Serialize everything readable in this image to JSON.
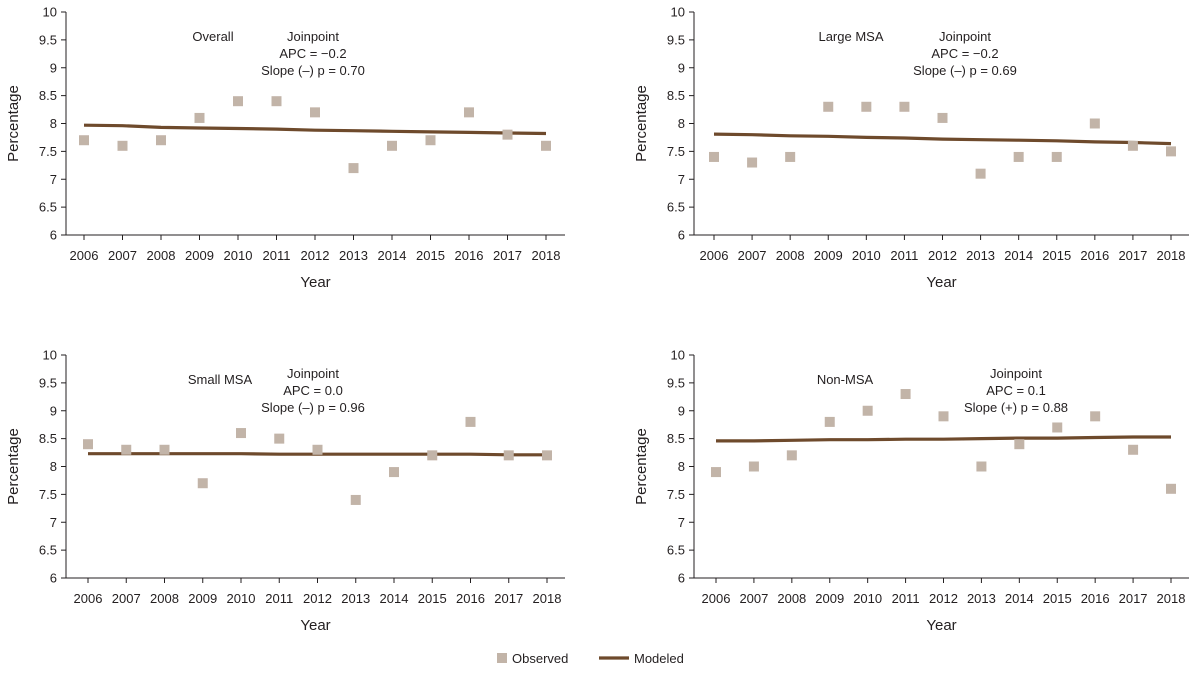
{
  "colors": {
    "observed": "#c2b4a8",
    "modeled": "#6e4a2c",
    "axis": "#231f20"
  },
  "legend": {
    "observed_label": "Observed",
    "modeled_label": "Modeled"
  },
  "chart_data": [
    {
      "type": "scatter",
      "panel": "top-left",
      "title": "Overall",
      "annotation_lines": [
        "Joinpoint",
        "APC = −0.2",
        "Slope (–) p = 0.70"
      ],
      "xlabel": "Year",
      "ylabel": "Percentage",
      "ylim": [
        6,
        10
      ],
      "yticks": [
        "6",
        "6.5",
        "7",
        "7.5",
        "8",
        "8.5",
        "9",
        "9.5",
        "10"
      ],
      "categories": [
        "2006",
        "2007",
        "2008",
        "2009",
        "2010",
        "2011",
        "2012",
        "2013",
        "2014",
        "2015",
        "2016",
        "2017",
        "2018"
      ],
      "series": [
        {
          "name": "Observed",
          "values": [
            7.7,
            7.6,
            7.7,
            8.1,
            8.4,
            8.4,
            8.2,
            7.2,
            7.6,
            7.7,
            8.2,
            7.8,
            7.6
          ]
        },
        {
          "name": "Modeled",
          "values": [
            7.97,
            7.96,
            7.93,
            7.92,
            7.91,
            7.9,
            7.88,
            7.87,
            7.86,
            7.85,
            7.84,
            7.83,
            7.82
          ]
        }
      ]
    },
    {
      "type": "scatter",
      "panel": "top-right",
      "title": "Large MSA",
      "annotation_lines": [
        "Joinpoint",
        "APC = −0.2",
        "Slope (–) p = 0.69"
      ],
      "xlabel": "Year",
      "ylabel": "Percentage",
      "ylim": [
        6,
        10
      ],
      "yticks": [
        "6",
        "6.5",
        "7",
        "7.5",
        "8",
        "8.5",
        "9",
        "9.5",
        "10"
      ],
      "categories": [
        "2006",
        "2007",
        "2008",
        "2009",
        "2010",
        "2011",
        "2012",
        "2013",
        "2014",
        "2015",
        "2016",
        "2017",
        "2018"
      ],
      "series": [
        {
          "name": "Observed",
          "values": [
            7.4,
            7.3,
            7.4,
            8.3,
            8.3,
            8.3,
            8.1,
            7.1,
            7.4,
            7.4,
            8.0,
            7.6,
            7.5
          ]
        },
        {
          "name": "Modeled",
          "values": [
            7.81,
            7.8,
            7.78,
            7.77,
            7.75,
            7.74,
            7.72,
            7.71,
            7.7,
            7.69,
            7.67,
            7.66,
            7.64
          ]
        }
      ]
    },
    {
      "type": "scatter",
      "panel": "bottom-left",
      "title": "Small MSA",
      "annotation_lines": [
        "Joinpoint",
        "APC = 0.0",
        "Slope (–) p = 0.96"
      ],
      "xlabel": "Year",
      "ylabel": "Percentage",
      "ylim": [
        6,
        10
      ],
      "yticks": [
        "6",
        "6.5",
        "7",
        "7.5",
        "8",
        "8.5",
        "9",
        "9.5",
        "10"
      ],
      "categories": [
        "2006",
        "2007",
        "2008",
        "2009",
        "2010",
        "2011",
        "2012",
        "2013",
        "2014",
        "2015",
        "2016",
        "2017",
        "2018"
      ],
      "series": [
        {
          "name": "Observed",
          "values": [
            8.4,
            8.3,
            8.3,
            7.7,
            8.6,
            8.5,
            8.3,
            7.4,
            7.9,
            8.2,
            8.8,
            8.2,
            8.2
          ]
        },
        {
          "name": "Modeled",
          "values": [
            8.23,
            8.23,
            8.23,
            8.23,
            8.23,
            8.22,
            8.22,
            8.22,
            8.22,
            8.22,
            8.22,
            8.21,
            8.21
          ]
        }
      ]
    },
    {
      "type": "scatter",
      "panel": "bottom-right",
      "title": "Non-MSA",
      "annotation_lines": [
        "Joinpoint",
        "APC = 0.1",
        "Slope (+) p = 0.88"
      ],
      "xlabel": "Year",
      "ylabel": "Percentage",
      "ylim": [
        6,
        10
      ],
      "yticks": [
        "6",
        "6.5",
        "7",
        "7.5",
        "8",
        "8.5",
        "9",
        "9.5",
        "10"
      ],
      "categories": [
        "2006",
        "2007",
        "2008",
        "2009",
        "2010",
        "2011",
        "2012",
        "2013",
        "2014",
        "2015",
        "2016",
        "2017",
        "2018"
      ],
      "series": [
        {
          "name": "Observed",
          "values": [
            7.9,
            8.0,
            8.2,
            8.8,
            9.0,
            9.3,
            8.9,
            8.0,
            8.4,
            8.7,
            8.9,
            8.3,
            7.6
          ]
        },
        {
          "name": "Modeled",
          "values": [
            8.46,
            8.46,
            8.47,
            8.48,
            8.48,
            8.49,
            8.49,
            8.5,
            8.51,
            8.51,
            8.52,
            8.53,
            8.53
          ]
        }
      ]
    }
  ]
}
